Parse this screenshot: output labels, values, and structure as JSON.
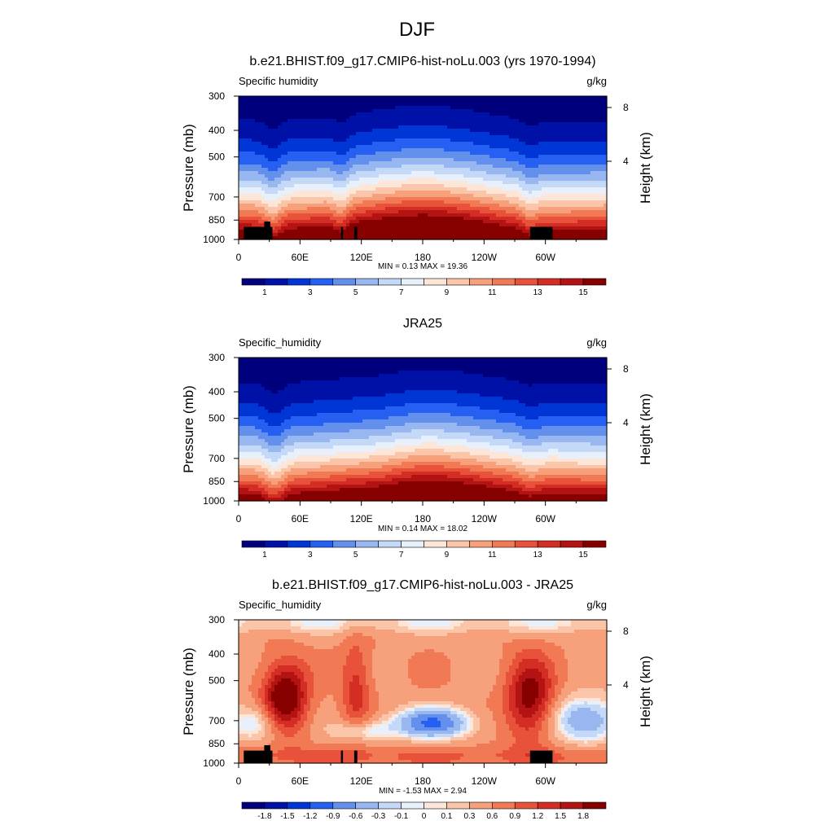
{
  "main_title": "DJF",
  "chart_data": [
    {
      "type": "heatmap",
      "title": "b.e21.BHIST.f09_g17.CMIP6-hist-noLu.003 (yrs 1970-1994)",
      "left_label": "Specific humidity",
      "right_label": "g/kg",
      "ylabel": "Pressure (mb)",
      "ylabel_right": "Height (km)",
      "x_ticks": [
        "0",
        "60E",
        "120E",
        "180",
        "120W",
        "60W"
      ],
      "y_ticks": [
        "300",
        "400",
        "500",
        "700",
        "850",
        "1000"
      ],
      "y_right_ticks": [
        "8",
        "4"
      ],
      "stats": "MIN =   0.13  MAX =  19.36",
      "xlim": [
        0,
        360
      ],
      "ylim": [
        1000,
        300
      ],
      "y_scale": "log",
      "min": 0.13,
      "max": 19.36,
      "colorbar_labels": [
        "1",
        "3",
        "5",
        "7",
        "9",
        "11",
        "13",
        "15"
      ],
      "colorbar_levels": 16,
      "field": "model",
      "has_topography_mask": true
    },
    {
      "type": "heatmap",
      "title": "JRA25",
      "left_label": "Specific_humidity",
      "right_label": "g/kg",
      "ylabel": "Pressure (mb)",
      "ylabel_right": "Height (km)",
      "x_ticks": [
        "0",
        "60E",
        "120E",
        "180",
        "120W",
        "60W"
      ],
      "y_ticks": [
        "300",
        "400",
        "500",
        "700",
        "850",
        "1000"
      ],
      "y_right_ticks": [
        "8",
        "4"
      ],
      "stats": "MIN =   0.14  MAX =  18.02",
      "xlim": [
        0,
        360
      ],
      "ylim": [
        1000,
        300
      ],
      "y_scale": "log",
      "min": 0.14,
      "max": 18.02,
      "colorbar_labels": [
        "1",
        "3",
        "5",
        "7",
        "9",
        "11",
        "13",
        "15"
      ],
      "colorbar_levels": 16,
      "field": "obs",
      "has_topography_mask": false
    },
    {
      "type": "heatmap",
      "title": "b.e21.BHIST.f09_g17.CMIP6-hist-noLu.003 - JRA25",
      "left_label": "Specific_humidity",
      "right_label": "g/kg",
      "ylabel": "Pressure (mb)",
      "ylabel_right": "Height (km)",
      "x_ticks": [
        "0",
        "60E",
        "120E",
        "180",
        "120W",
        "60W"
      ],
      "y_ticks": [
        "300",
        "400",
        "500",
        "700",
        "850",
        "1000"
      ],
      "y_right_ticks": [
        "8",
        "4"
      ],
      "stats": "MIN =  -1.53  MAX =   2.94",
      "xlim": [
        0,
        360
      ],
      "ylim": [
        1000,
        300
      ],
      "y_scale": "log",
      "min": -1.53,
      "max": 2.94,
      "colorbar_labels": [
        "-1.8",
        "-1.5",
        "-1.2",
        "-0.9",
        "-0.6",
        "-0.3",
        "-0.1",
        "0",
        "0.1",
        "0.3",
        "0.6",
        "0.9",
        "1.2",
        "1.5",
        "1.8"
      ],
      "colorbar_levels": 16,
      "field": "diff",
      "has_topography_mask": true
    }
  ],
  "colors": {
    "palette": [
      "#00007d",
      "#0011a8",
      "#0036d6",
      "#2660f2",
      "#6490ed",
      "#98b7f0",
      "#c4d8f7",
      "#e8f0fb",
      "#fde6d8",
      "#fbc5aa",
      "#f7a07c",
      "#f17a55",
      "#e8513a",
      "#d42d23",
      "#b31312",
      "#870000"
    ]
  }
}
